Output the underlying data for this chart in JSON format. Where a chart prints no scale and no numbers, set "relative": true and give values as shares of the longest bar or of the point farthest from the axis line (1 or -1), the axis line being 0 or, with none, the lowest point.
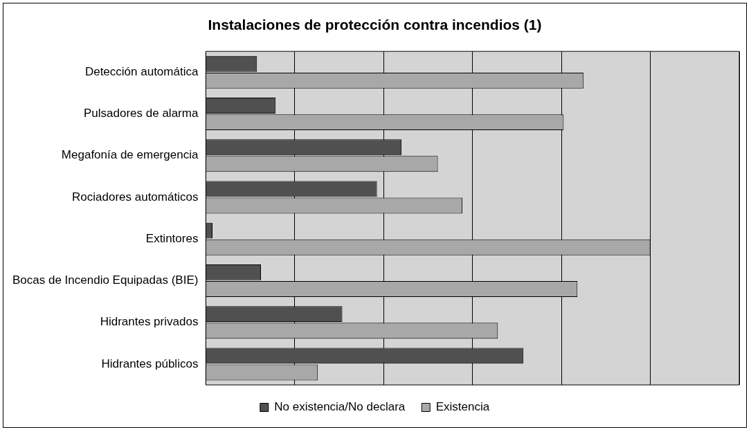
{
  "chart_data": {
    "type": "bar",
    "orientation": "horizontal",
    "relative": true,
    "title": "Instalaciones de protección contra incendios (1)",
    "categories": [
      "Detección automática",
      "Pulsadores de alarma",
      "Megafonía de emergencia",
      "Rociadores automáticos",
      "Extintores",
      "Bocas de Incendio Equipadas (BIE)",
      "Hidrantes privados",
      "Hidrantes públicos"
    ],
    "series": [
      {
        "name": "No existencia/No declara",
        "color": "#505050",
        "values": [
          0.115,
          0.157,
          0.44,
          0.385,
          0.015,
          0.124,
          0.307,
          0.714
        ]
      },
      {
        "name": "Existencia",
        "color": "#a8a8a8",
        "values": [
          0.85,
          0.805,
          0.522,
          0.577,
          1,
          0.836,
          0.657,
          0.252
        ]
      }
    ],
    "grid": "x",
    "legend": "bottom"
  }
}
